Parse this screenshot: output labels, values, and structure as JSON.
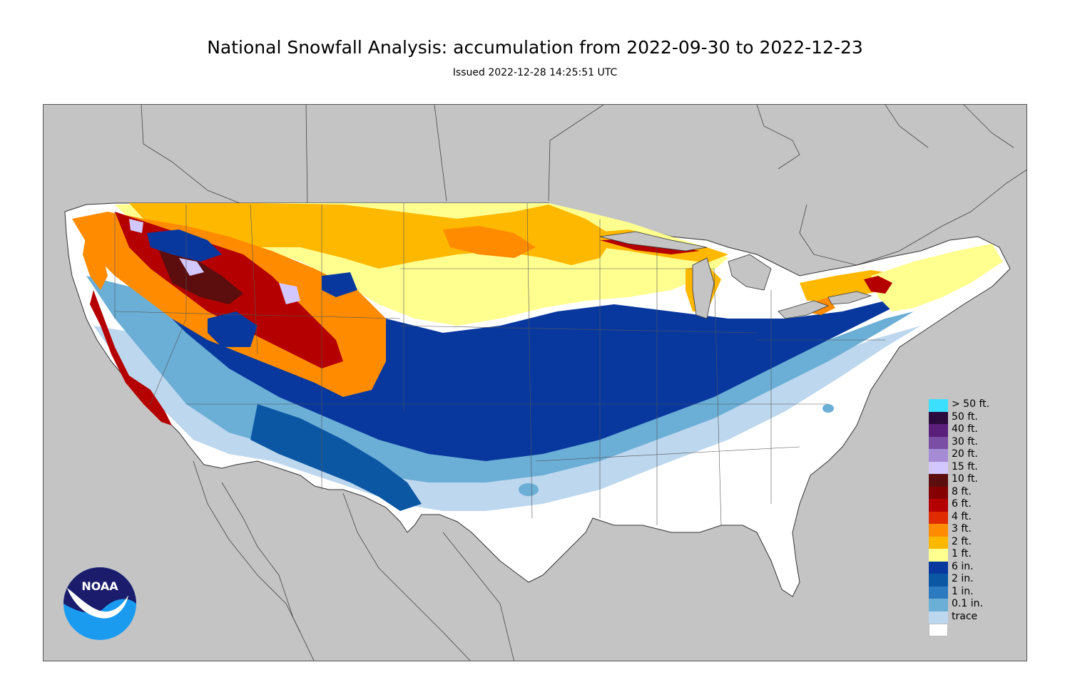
{
  "header": {
    "title": "National Snowfall Analysis: accumulation from 2022-09-30 to 2022-12-23",
    "issued": "Issued 2022-12-28 14:25:51 UTC"
  },
  "logo": {
    "text": "NOAA",
    "icon": "noaa-logo-icon"
  },
  "map": {
    "region": "Contiguous United States",
    "background_color": "#c4c4c4",
    "land_outline_color": "#333333"
  },
  "legend": {
    "items": [
      {
        "label": "> 50 ft.",
        "color": "#3ddfff"
      },
      {
        "label": "50 ft.",
        "color": "#2b0a3d"
      },
      {
        "label": "40 ft.",
        "color": "#5a1f7a"
      },
      {
        "label": "30 ft.",
        "color": "#7a4ea4"
      },
      {
        "label": "20 ft.",
        "color": "#a48bd4"
      },
      {
        "label": "15 ft.",
        "color": "#d2c8ff"
      },
      {
        "label": "10 ft.",
        "color": "#5c0d0d"
      },
      {
        "label": "8 ft.",
        "color": "#850000"
      },
      {
        "label": "6 ft.",
        "color": "#b50000"
      },
      {
        "label": "4 ft.",
        "color": "#e02b00"
      },
      {
        "label": "3 ft.",
        "color": "#ff8c00"
      },
      {
        "label": "2 ft.",
        "color": "#ffb800"
      },
      {
        "label": "1 ft.",
        "color": "#ffff90"
      },
      {
        "label": "6 in.",
        "color": "#08389e"
      },
      {
        "label": "2 in.",
        "color": "#0b57a4"
      },
      {
        "label": "1 in.",
        "color": "#2c7bc0"
      },
      {
        "label": "0.1 in.",
        "color": "#6baed6"
      },
      {
        "label": "trace",
        "color": "#bdd7ee"
      },
      {
        "label": "",
        "color": "#ffffff"
      }
    ]
  }
}
